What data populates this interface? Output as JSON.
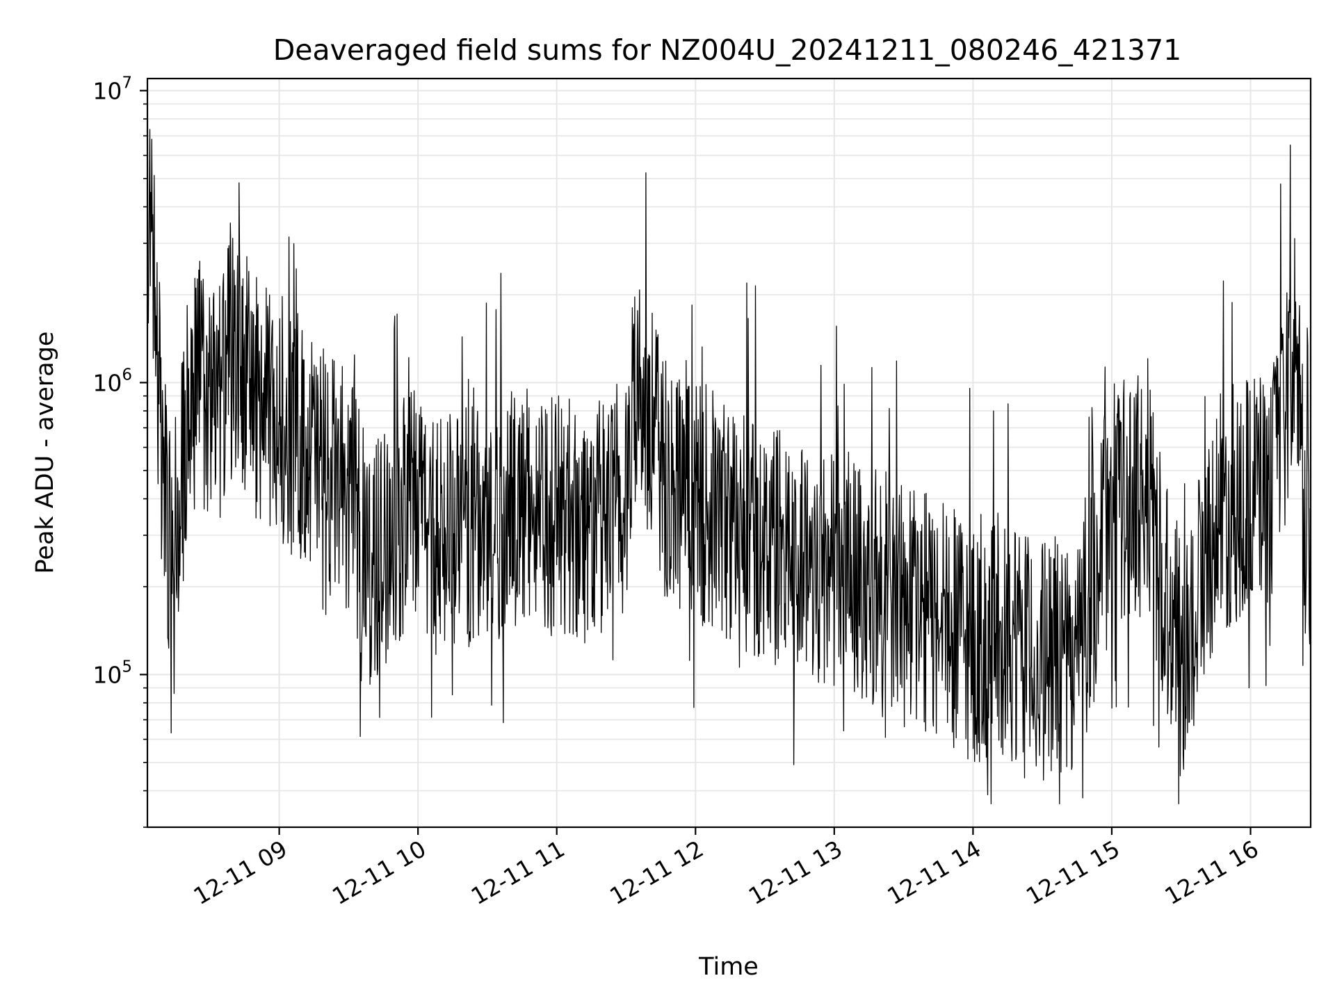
{
  "chart_data": {
    "type": "line",
    "title": "Deaveraged field sums for NZ004U_20241211_080246_421371",
    "xlabel": "Time",
    "ylabel": "Peak ADU - average",
    "yscale": "log",
    "xlim": [
      "2024-12-11 08:03",
      "2024-12-11 16:26"
    ],
    "ylim": [
      30000,
      11000000
    ],
    "grid": true,
    "line_color": "#000000",
    "grid_color": "#e6e6e6",
    "x_ticks": [
      {
        "value": "2024-12-11 09:00",
        "label": "12-11 09"
      },
      {
        "value": "2024-12-11 10:00",
        "label": "12-11 10"
      },
      {
        "value": "2024-12-11 11:00",
        "label": "12-11 11"
      },
      {
        "value": "2024-12-11 12:00",
        "label": "12-11 12"
      },
      {
        "value": "2024-12-11 13:00",
        "label": "12-11 13"
      },
      {
        "value": "2024-12-11 14:00",
        "label": "12-11 14"
      },
      {
        "value": "2024-12-11 15:00",
        "label": "12-11 15"
      },
      {
        "value": "2024-12-11 16:00",
        "label": "12-11 16"
      }
    ],
    "y_ticks": [
      {
        "value": 100000,
        "base": "10",
        "exp": "5"
      },
      {
        "value": 1000000,
        "base": "10",
        "exp": "6"
      },
      {
        "value": 10000000,
        "base": "10",
        "exp": "7"
      }
    ],
    "series": [
      {
        "x": [
          "2024-12-11 08:03",
          "2024-12-11 08:04",
          "2024-12-11 08:05",
          "2024-12-11 08:06",
          "2024-12-11 08:07",
          "2024-12-11 08:08",
          "2024-12-11 08:10",
          "2024-12-11 08:12",
          "2024-12-11 08:15",
          "2024-12-11 08:20",
          "2024-12-11 08:25",
          "2024-12-11 08:30",
          "2024-12-11 08:35",
          "2024-12-11 08:40",
          "2024-12-11 08:45",
          "2024-12-11 08:50",
          "2024-12-11 08:55",
          "2024-12-11 09:00",
          "2024-12-11 09:10",
          "2024-12-11 09:20",
          "2024-12-11 09:30",
          "2024-12-11 09:40",
          "2024-12-11 09:50",
          "2024-12-11 10:00",
          "2024-12-11 10:15",
          "2024-12-11 10:30",
          "2024-12-11 10:45",
          "2024-12-11 11:00",
          "2024-12-11 11:15",
          "2024-12-11 11:30",
          "2024-12-11 11:35",
          "2024-12-11 11:45",
          "2024-12-11 12:00",
          "2024-12-11 12:15",
          "2024-12-11 12:30",
          "2024-12-11 12:45",
          "2024-12-11 13:00",
          "2024-12-11 13:15",
          "2024-12-11 13:30",
          "2024-12-11 13:45",
          "2024-12-11 14:00",
          "2024-12-11 14:15",
          "2024-12-11 14:30",
          "2024-12-11 14:45",
          "2024-12-11 15:00",
          "2024-12-11 15:15",
          "2024-12-11 15:30",
          "2024-12-11 15:45",
          "2024-12-11 16:00",
          "2024-12-11 16:10",
          "2024-12-11 16:20",
          "2024-12-11 16:26"
        ],
        "y": [
          1000000,
          6500000,
          2500000,
          3000000,
          1800000,
          900000,
          500000,
          300000,
          300000,
          700000,
          1100000,
          800000,
          900000,
          1300000,
          1100000,
          900000,
          800000,
          700000,
          650000,
          500000,
          420000,
          230000,
          330000,
          370000,
          310000,
          330000,
          380000,
          360000,
          330000,
          360000,
          1300000,
          500000,
          400000,
          330000,
          290000,
          250000,
          230000,
          210000,
          190000,
          150000,
          130000,
          120000,
          110000,
          120000,
          380000,
          420000,
          110000,
          350000,
          420000,
          480000,
          1300000,
          170000
        ]
      }
    ]
  }
}
